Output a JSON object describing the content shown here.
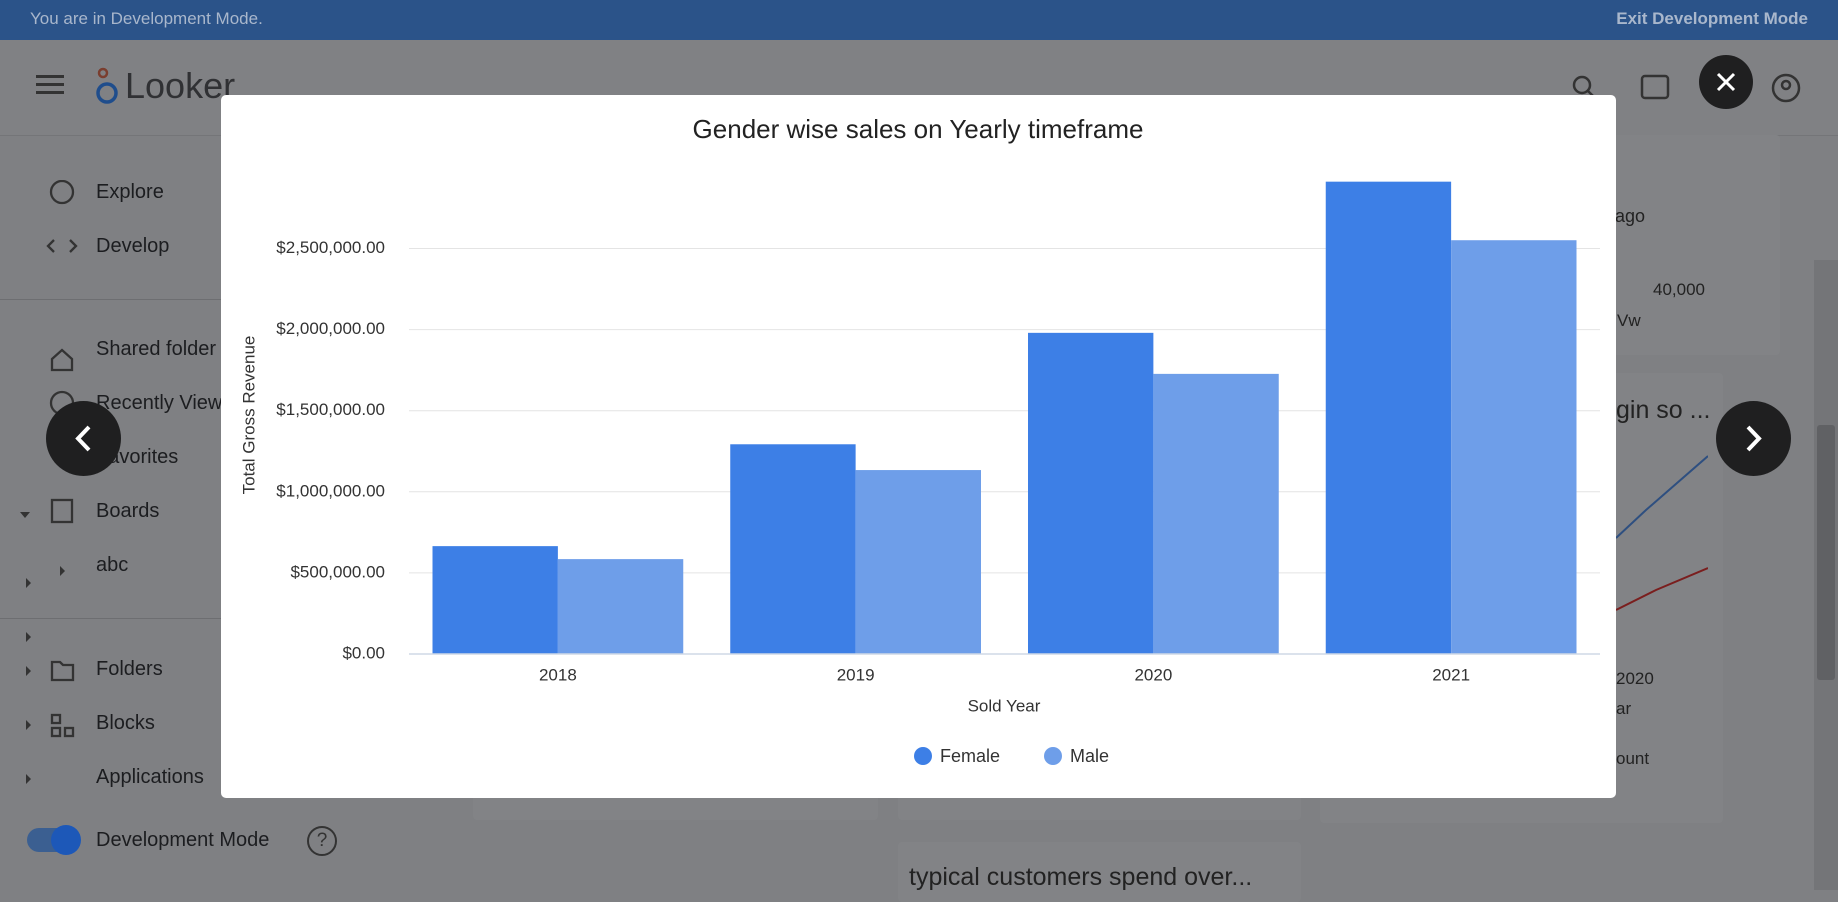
{
  "banner": {
    "message": "You are in Development Mode.",
    "exit": "Exit Development Mode"
  },
  "header": {
    "logo": "Looker"
  },
  "sidebar": {
    "items": [
      "Explore",
      "Develop",
      "Shared folder",
      "Recently View",
      "Favorites",
      "Boards",
      "abc",
      "Folders",
      "Blocks",
      "Applications"
    ],
    "toggle": "Development Mode"
  },
  "background": {
    "ago": "ago",
    "axis_value": "40,000",
    "axis_label": "Vw",
    "tile_title": "gin so ...",
    "year": "2020",
    "x_label": "ar",
    "legend": "ount",
    "bottom_tile": "typical customers spend over..."
  },
  "chart_data": {
    "type": "bar",
    "title": "Gender wise sales on Yearly timeframe",
    "x_label": "Sold Year",
    "y_label": "Total Gross Revenue",
    "categories": [
      "2018",
      "2019",
      "2020",
      "2021"
    ],
    "series": [
      {
        "name": "Female",
        "color": "#3d7fe6",
        "values": [
          665000,
          1293000,
          1980000,
          2912000
        ]
      },
      {
        "name": "Male",
        "color": "#6e9ee9",
        "values": [
          585000,
          1134000,
          1727000,
          2551000
        ]
      }
    ],
    "ylim": [
      0,
      2950000
    ],
    "yticks": [
      {
        "value": 0,
        "label": "$0.00"
      },
      {
        "value": 500000,
        "label": "$500,000.00"
      },
      {
        "value": 1000000,
        "label": "$1,000,000.00"
      },
      {
        "value": 1500000,
        "label": "$1,500,000.00"
      },
      {
        "value": 2000000,
        "label": "$2,000,000.00"
      },
      {
        "value": 2500000,
        "label": "$2,500,000.00"
      }
    ],
    "grid": true,
    "legend": "bottom"
  }
}
